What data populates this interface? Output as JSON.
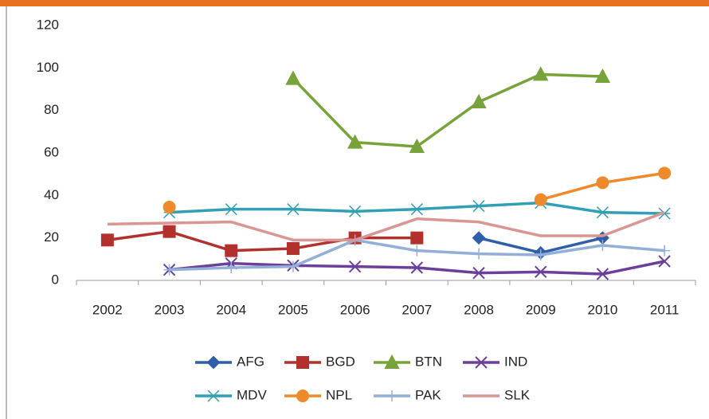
{
  "chart_data": {
    "type": "line",
    "categories": [
      "2002",
      "2003",
      "2004",
      "2005",
      "2006",
      "2007",
      "2008",
      "2009",
      "2010",
      "2011"
    ],
    "ylim": [
      0,
      120
    ],
    "yticks": [
      0,
      20,
      40,
      60,
      80,
      100,
      120
    ],
    "grid": false,
    "series": [
      {
        "name": "AFG",
        "color": "#2e5fa8",
        "marker": "diamond",
        "values": [
          null,
          null,
          null,
          null,
          null,
          null,
          20,
          13,
          20,
          null
        ]
      },
      {
        "name": "BGD",
        "color": "#b3312d",
        "marker": "square",
        "values": [
          19,
          23,
          14,
          15,
          20,
          20,
          null,
          null,
          null,
          null
        ]
      },
      {
        "name": "BTN",
        "color": "#77a33a",
        "marker": "triangle",
        "values": [
          null,
          null,
          null,
          95,
          65,
          63,
          84,
          97,
          96,
          null
        ]
      },
      {
        "name": "IND",
        "color": "#6b3f9a",
        "marker": "x",
        "values": [
          null,
          5,
          8,
          7,
          6.5,
          6,
          3.5,
          4,
          3,
          9
        ]
      },
      {
        "name": "MDV",
        "color": "#31a0b4",
        "marker": "asterisk",
        "values": [
          null,
          32,
          33.5,
          33.5,
          32.5,
          33.5,
          35,
          36.5,
          32,
          31.5
        ]
      },
      {
        "name": "NPL",
        "color": "#ef8a2a",
        "marker": "circle",
        "values": [
          null,
          34.5,
          null,
          null,
          null,
          null,
          null,
          38,
          46,
          50.5
        ]
      },
      {
        "name": "PAK",
        "color": "#93aed8",
        "marker": "plus",
        "values": [
          null,
          5,
          6,
          6.5,
          19,
          14,
          12.5,
          12,
          16.5,
          14
        ]
      },
      {
        "name": "SLK",
        "color": "#d99694",
        "marker": "none",
        "values": [
          26.5,
          27,
          27.5,
          19,
          19,
          29,
          27.5,
          21,
          21,
          32
        ]
      }
    ]
  }
}
